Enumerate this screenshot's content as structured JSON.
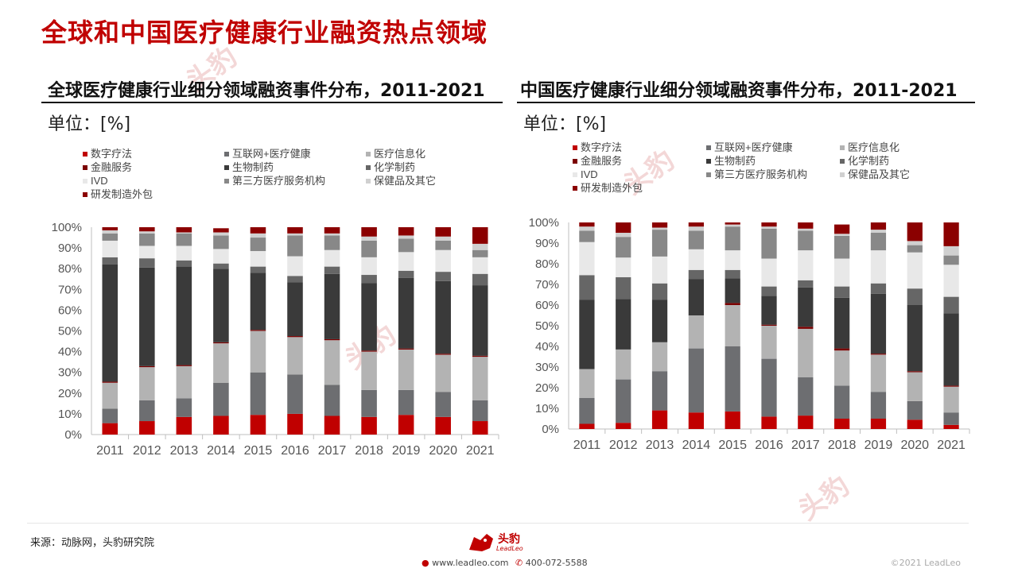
{
  "page": {
    "title": "全球和中国医疗健康行业融资热点领域",
    "watermark": "头豹"
  },
  "footer": {
    "source": "来源：动脉网，头豹研究院",
    "logo_text": "头豹",
    "logo_sub": "LeadLeo",
    "website": "www.leadleo.com",
    "phone": "400-072-5588",
    "copyright": "©2021 LeadLeo"
  },
  "colors": {
    "数字疗法": "#c00000",
    "互联网+医疗健康": "#6d6e71",
    "医疗信息化": "#b3b3b3",
    "金融服务": "#7b0000",
    "生物制药": "#3a3a3a",
    "化学制药": "#666666",
    "IVD": "#e8e8e8",
    "第三方医疗服务机构": "#888888",
    "保健品及其它": "#d0d0d0",
    "研发制造外包": "#8b0000"
  },
  "chart_data": [
    {
      "type": "bar",
      "stacked": true,
      "title": "全球医疗健康行业细分领域融资事件分布，2011-2021",
      "unit": "单位：[%]",
      "categories": [
        "2011",
        "2012",
        "2013",
        "2014",
        "2015",
        "2016",
        "2017",
        "2018",
        "2019",
        "2020",
        "2021"
      ],
      "y_ticks": [
        "0%",
        "10%",
        "20%",
        "30%",
        "40%",
        "50%",
        "60%",
        "70%",
        "80%",
        "90%",
        "100%"
      ],
      "ylim": [
        0,
        100
      ],
      "legend_position": "top",
      "series": [
        {
          "name": "数字疗法",
          "values": [
            5.5,
            6.5,
            8.5,
            9.0,
            9.5,
            10.0,
            9.0,
            8.5,
            9.5,
            8.5,
            6.5
          ]
        },
        {
          "name": "互联网+医疗健康",
          "values": [
            7.0,
            10.0,
            9.0,
            16.0,
            20.5,
            19.0,
            15.0,
            13.0,
            12.0,
            12.0,
            10.0
          ]
        },
        {
          "name": "医疗信息化",
          "values": [
            12.5,
            16.0,
            15.5,
            19.0,
            20.0,
            18.0,
            21.5,
            18.5,
            19.5,
            18.0,
            21.0
          ]
        },
        {
          "name": "金融服务",
          "values": [
            0.5,
            0.5,
            0.5,
            0.5,
            0.5,
            0.5,
            0.5,
            0.5,
            0.5,
            0.5,
            0.5
          ]
        },
        {
          "name": "生物制药",
          "values": [
            56.5,
            47.5,
            47.5,
            35.5,
            27.5,
            26.0,
            31.5,
            32.5,
            34.0,
            35.0,
            34.0
          ]
        },
        {
          "name": "化学制药",
          "values": [
            3.5,
            4.5,
            3.0,
            2.5,
            3.0,
            3.0,
            3.5,
            4.0,
            3.5,
            4.5,
            5.5
          ]
        },
        {
          "name": "IVD",
          "values": [
            8.0,
            6.0,
            7.0,
            7.0,
            7.5,
            9.5,
            8.0,
            8.5,
            9.0,
            10.5,
            8.0
          ]
        },
        {
          "name": "第三方医疗服务机构",
          "values": [
            3.5,
            6.0,
            6.0,
            6.5,
            6.5,
            10.0,
            7.0,
            8.0,
            6.5,
            4.5,
            3.5
          ]
        },
        {
          "name": "保健品及其它",
          "values": [
            1.5,
            1.0,
            0.5,
            1.5,
            2.0,
            1.0,
            1.0,
            2.0,
            1.5,
            2.0,
            3.0
          ]
        },
        {
          "name": "研发制造外包",
          "values": [
            1.5,
            2.0,
            2.5,
            2.0,
            3.0,
            3.0,
            3.0,
            4.5,
            4.0,
            4.5,
            8.0
          ]
        }
      ]
    },
    {
      "type": "bar",
      "stacked": true,
      "title": "中国医疗健康行业细分领域融资事件分布，2011-2021",
      "unit": "单位：[%]",
      "categories": [
        "2011",
        "2012",
        "2013",
        "2014",
        "2015",
        "2016",
        "2017",
        "2018",
        "2019",
        "2020",
        "2021"
      ],
      "y_ticks": [
        "0%",
        "10%",
        "20%",
        "30%",
        "40%",
        "50%",
        "60%",
        "70%",
        "80%",
        "90%",
        "100%"
      ],
      "ylim": [
        0,
        100
      ],
      "legend_position": "top",
      "series": [
        {
          "name": "数字疗法",
          "values": [
            2.5,
            3.0,
            9.0,
            8.0,
            8.5,
            6.0,
            6.5,
            5.0,
            5.0,
            4.5,
            2.0
          ]
        },
        {
          "name": "互联网+医疗健康",
          "values": [
            12.5,
            21.0,
            19.0,
            31.0,
            31.5,
            28.0,
            18.5,
            16.0,
            13.0,
            9.0,
            6.0
          ]
        },
        {
          "name": "医疗信息化",
          "values": [
            14.0,
            14.5,
            14.0,
            16.0,
            20.0,
            16.0,
            23.5,
            17.0,
            18.0,
            14.0,
            12.5
          ]
        },
        {
          "name": "金融服务",
          "values": [
            0.0,
            0.0,
            0.0,
            0.0,
            1.0,
            0.5,
            1.0,
            1.0,
            0.5,
            0.5,
            0.5
          ]
        },
        {
          "name": "生物制药",
          "values": [
            33.5,
            24.5,
            20.5,
            17.5,
            12.0,
            14.0,
            19.0,
            24.5,
            29.0,
            32.0,
            35.0
          ]
        },
        {
          "name": "化学制药",
          "values": [
            12.0,
            10.5,
            8.0,
            4.5,
            4.0,
            4.5,
            3.5,
            5.5,
            5.0,
            8.0,
            8.0
          ]
        },
        {
          "name": "IVD",
          "values": [
            16.0,
            9.5,
            13.0,
            10.0,
            9.5,
            13.5,
            14.5,
            13.5,
            16.0,
            17.5,
            15.5
          ]
        },
        {
          "name": "第三方医疗服务机构",
          "values": [
            5.5,
            10.0,
            13.0,
            9.0,
            11.5,
            14.5,
            9.5,
            11.0,
            8.5,
            3.5,
            4.5
          ]
        },
        {
          "name": "保健品及其它",
          "values": [
            2.0,
            2.0,
            1.0,
            2.0,
            1.0,
            1.0,
            1.0,
            1.0,
            1.5,
            2.0,
            4.5
          ]
        },
        {
          "name": "研发制造外包",
          "values": [
            2.0,
            5.0,
            2.5,
            2.0,
            1.0,
            2.0,
            3.0,
            4.5,
            3.5,
            9.0,
            11.5
          ]
        }
      ]
    }
  ]
}
